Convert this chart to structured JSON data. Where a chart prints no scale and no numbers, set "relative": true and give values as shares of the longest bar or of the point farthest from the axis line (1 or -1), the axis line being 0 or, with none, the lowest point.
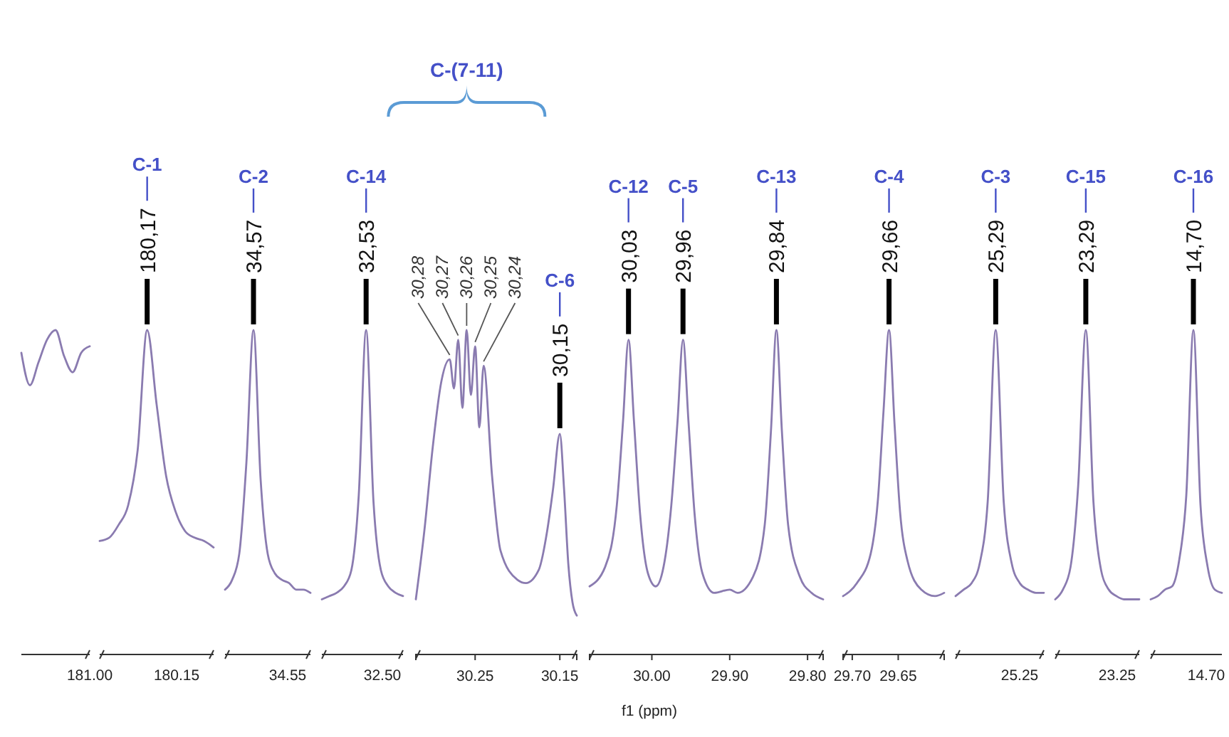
{
  "chart_data": [
    {
      "type": "line",
      "relative": true,
      "categories": [
        null,
        null,
        null,
        null,
        null,
        null,
        null,
        null,
        null
      ],
      "series": [
        {
          "color": "#8a7bb0",
          "values": [
            0.93,
            0.83,
            0.9,
            0.97,
            1.0,
            0.92,
            0.87,
            0.93,
            0.95
          ]
        }
      ],
      "annotations": [
        "181.00"
      ]
    },
    {
      "type": "line",
      "relative": true,
      "categories": [
        null,
        null,
        null,
        null,
        null,
        null,
        null,
        null,
        null,
        null,
        null,
        null,
        null
      ],
      "series": [
        {
          "color": "#8a7bb0",
          "values": [
            0.35,
            0.36,
            0.4,
            0.46,
            0.63,
            1,
            0.77,
            0.55,
            0.44,
            0.38,
            0.36,
            0.35,
            0.33
          ]
        }
      ],
      "annotations": [
        "180.15",
        {
          "text": "180,17",
          "y": 1
        },
        "C-1"
      ]
    },
    {
      "type": "line",
      "relative": true,
      "categories": [
        null,
        null,
        null,
        null,
        null,
        null,
        null,
        null,
        null,
        null,
        null,
        null,
        null
      ],
      "series": [
        {
          "color": "#8a7bb0",
          "values": [
            0.2,
            0.23,
            0.31,
            0.59,
            1,
            0.54,
            0.31,
            0.25,
            0.23,
            0.22,
            0.2,
            0.2,
            0.19
          ]
        }
      ],
      "annotations": [
        "34.55",
        {
          "text": "34,57",
          "y": 1
        },
        "C-2"
      ]
    },
    {
      "type": "line",
      "relative": true,
      "categories": [
        null,
        null,
        null,
        null,
        null,
        null,
        null,
        null,
        null,
        null,
        null,
        null
      ],
      "series": [
        {
          "color": "#8a7bb0",
          "values": [
            0.17,
            0.18,
            0.19,
            0.21,
            0.26,
            0.49,
            1,
            0.47,
            0.26,
            0.21,
            0.19,
            0.18
          ]
        }
      ],
      "annotations": [
        "32.50",
        {
          "text": "32,53",
          "y": 1
        },
        "C-14"
      ]
    },
    {
      "type": "line",
      "relative": true,
      "xlim": [
        30.32,
        30.13
      ],
      "xticks": [
        30.25,
        30.15
      ],
      "series": [
        {
          "color": "#8a7bb0",
          "x": [
            30.32,
            30.31,
            30.3,
            30.29,
            30.28,
            30.275,
            30.27,
            30.265,
            30.26,
            30.255,
            30.25,
            30.245,
            30.24,
            30.23,
            30.22,
            30.2,
            30.19,
            30.175,
            30.165,
            30.158,
            30.15,
            30.145,
            30.14,
            30.135,
            30.13
          ],
          "values": [
            0.17,
            0.38,
            0.64,
            0.84,
            0.91,
            0.82,
            0.97,
            0.76,
            1.0,
            0.8,
            0.95,
            0.7,
            0.89,
            0.55,
            0.32,
            0.23,
            0.22,
            0.26,
            0.38,
            0.51,
            0.68,
            0.51,
            0.28,
            0.16,
            0.12
          ]
        }
      ],
      "annotations": [
        {
          "text": "30,28",
          "x": 30.28,
          "y": 0.91
        },
        {
          "text": "30,27",
          "x": 30.27,
          "y": 0.97
        },
        {
          "text": "30,26",
          "x": 30.26,
          "y": 1.0
        },
        {
          "text": "30,25",
          "x": 30.25,
          "y": 0.95
        },
        {
          "text": "30,24",
          "x": 30.24,
          "y": 0.89
        },
        "C-(7-11)",
        {
          "text": "30,15",
          "x": 30.15,
          "y": 0.68
        },
        "C-6"
      ]
    },
    {
      "type": "line",
      "relative": true,
      "xlim": [
        30.08,
        29.78
      ],
      "xticks": [
        {
          "value": 30.0,
          "label": "30.00"
        },
        {
          "value": 29.9,
          "label": "29.90"
        },
        {
          "value": 29.8,
          "label": "29.80"
        }
      ],
      "xlabel": "f1 (ppm)",
      "series": [
        {
          "color": "#8a7bb0",
          "x": [
            30.08,
            30.06,
            30.045,
            30.037,
            30.03,
            30.023,
            30.015,
            30.005,
            29.995,
            29.985,
            29.975,
            29.967,
            29.96,
            29.953,
            29.945,
            29.935,
            29.92,
            29.9,
            29.89,
            29.87,
            29.855,
            29.847,
            29.84,
            29.833,
            29.825,
            29.81,
            29.795,
            29.78
          ],
          "values": [
            0.21,
            0.27,
            0.46,
            0.72,
            0.97,
            0.72,
            0.43,
            0.25,
            0.21,
            0.27,
            0.46,
            0.72,
            0.97,
            0.72,
            0.43,
            0.25,
            0.19,
            0.2,
            0.19,
            0.24,
            0.4,
            0.69,
            1.0,
            0.69,
            0.4,
            0.24,
            0.19,
            0.17
          ]
        }
      ],
      "annotations": [
        {
          "text": "30,03",
          "x": 30.03,
          "y": 0.97
        },
        "C-12",
        {
          "text": "29,96",
          "x": 29.96,
          "y": 0.97
        },
        "C-5",
        {
          "text": "29,84",
          "x": 29.84,
          "y": 1.0
        },
        "C-13"
      ]
    },
    {
      "type": "line",
      "relative": true,
      "xlim": [
        29.71,
        29.6
      ],
      "xticks": [
        {
          "value": 29.7,
          "label": "29.70"
        },
        29.65
      ],
      "series": [
        {
          "color": "#8a7bb0",
          "x": [
            29.71,
            29.695,
            29.68,
            29.672,
            29.666,
            29.66,
            29.654,
            29.648,
            29.64,
            29.625,
            29.61,
            29.6
          ],
          "values": [
            0.18,
            0.22,
            0.31,
            0.48,
            0.75,
            1.0,
            0.71,
            0.44,
            0.29,
            0.2,
            0.18,
            0.19
          ]
        }
      ],
      "annotations": [
        {
          "text": "29,66",
          "x": 29.66,
          "y": 1.0
        },
        "C-4"
      ]
    },
    {
      "type": "line",
      "relative": true,
      "categories": [
        null,
        null,
        null,
        null,
        null,
        null,
        null,
        null,
        null,
        null,
        null,
        null
      ],
      "series": [
        {
          "color": "#8a7bb0",
          "values": [
            0.18,
            0.2,
            0.22,
            0.28,
            0.47,
            1,
            0.47,
            0.28,
            0.22,
            0.2,
            0.19,
            0.19
          ]
        }
      ],
      "annotations": [
        "25.25",
        {
          "text": "25,29",
          "y": 1
        },
        "C-3"
      ]
    },
    {
      "type": "line",
      "relative": true,
      "categories": [
        null,
        null,
        null,
        null,
        null,
        null,
        null,
        null,
        null,
        null,
        null,
        null
      ],
      "series": [
        {
          "color": "#8a7bb0",
          "values": [
            0.17,
            0.2,
            0.27,
            0.52,
            1,
            0.47,
            0.26,
            0.2,
            0.18,
            0.17,
            0.17,
            0.17
          ]
        }
      ],
      "annotations": [
        "23.25",
        {
          "text": "23,29",
          "y": 1
        },
        "C-15"
      ]
    },
    {
      "type": "line",
      "relative": true,
      "categories": [
        null,
        null,
        null,
        null,
        null,
        null,
        null,
        null,
        null,
        null,
        null
      ],
      "series": [
        {
          "color": "#8a7bb0",
          "values": [
            0.17,
            0.18,
            0.2,
            0.21,
            0.29,
            0.49,
            1,
            0.46,
            0.27,
            0.2,
            0.19
          ]
        }
      ],
      "annotations": [
        "14.70",
        {
          "text": "14,70",
          "y": 1
        },
        "C-16"
      ]
    }
  ]
}
